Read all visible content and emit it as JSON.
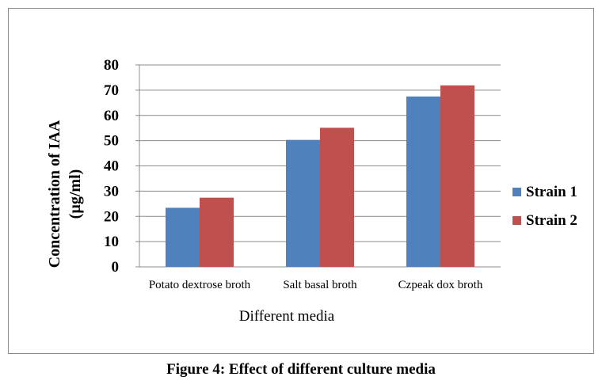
{
  "chart_data": {
    "type": "bar",
    "title": "",
    "xlabel": "Different media",
    "ylabel_lines": [
      "Concentration of IAA",
      "(µg/ml)"
    ],
    "categories": [
      "Potato dextrose broth",
      "Salt basal broth",
      "Czpeak dox broth"
    ],
    "series": [
      {
        "name": "Strain 1",
        "color": "#4f81bd",
        "values": [
          23.4,
          50.3,
          67.5
        ]
      },
      {
        "name": "Strain 2",
        "color": "#c0504d",
        "values": [
          27.4,
          55.1,
          71.9
        ]
      }
    ],
    "ylim": [
      0,
      80
    ],
    "yticks": [
      0,
      10,
      20,
      30,
      40,
      50,
      60,
      70,
      80
    ],
    "grid": true,
    "legend_position": "right"
  },
  "caption": "Figure 4: Effect of different culture media"
}
